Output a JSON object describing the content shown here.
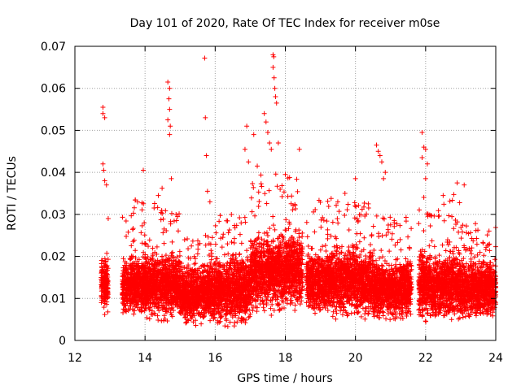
{
  "chart_data": {
    "type": "scatter",
    "title": "Day 101 of 2020, Rate Of TEC Index for receiver m0se",
    "xlabel": "GPS time / hours",
    "ylabel": "ROTI / TECUs",
    "xlim": [
      12,
      24
    ],
    "ylim": [
      0,
      0.07
    ],
    "grid": true,
    "marker": "+",
    "color": "#ff0000",
    "x_ticks": [
      12,
      14,
      16,
      18,
      20,
      22,
      24
    ],
    "x_tick_labels": [
      "12",
      "14",
      "16",
      "18",
      "20",
      "22",
      "24"
    ],
    "y_ticks": [
      0,
      0.01,
      0.02,
      0.03,
      0.04,
      0.05,
      0.06,
      0.07
    ],
    "y_tick_labels": [
      "0",
      "0.01",
      "0.02",
      "0.03",
      "0.04",
      "0.05",
      "0.06",
      "0.07"
    ],
    "data_gaps_hours": [
      [
        12.0,
        12.75
      ],
      [
        12.95,
        13.35
      ],
      [
        18.5,
        18.6
      ],
      [
        21.6,
        21.8
      ]
    ],
    "bands": [
      {
        "x": [
          12.75,
          12.95
        ],
        "base": 0.013,
        "spread": 0.006,
        "peak": 0.02
      },
      {
        "x": [
          13.35,
          14.0
        ],
        "base": 0.013,
        "spread": 0.006,
        "peak": 0.035
      },
      {
        "x": [
          14.0,
          15.0
        ],
        "base": 0.013,
        "spread": 0.007,
        "peak": 0.037
      },
      {
        "x": [
          15.0,
          16.0
        ],
        "base": 0.011,
        "spread": 0.006,
        "peak": 0.025
      },
      {
        "x": [
          16.0,
          17.0
        ],
        "base": 0.012,
        "spread": 0.007,
        "peak": 0.03
      },
      {
        "x": [
          17.0,
          18.0
        ],
        "base": 0.016,
        "spread": 0.008,
        "peak": 0.04
      },
      {
        "x": [
          18.0,
          18.5
        ],
        "base": 0.017,
        "spread": 0.008,
        "peak": 0.04
      },
      {
        "x": [
          18.6,
          19.5
        ],
        "base": 0.014,
        "spread": 0.007,
        "peak": 0.034
      },
      {
        "x": [
          19.5,
          20.5
        ],
        "base": 0.014,
        "spread": 0.007,
        "peak": 0.033
      },
      {
        "x": [
          20.5,
          21.6
        ],
        "base": 0.012,
        "spread": 0.006,
        "peak": 0.03
      },
      {
        "x": [
          21.8,
          23.0
        ],
        "base": 0.013,
        "spread": 0.007,
        "peak": 0.035
      },
      {
        "x": [
          23.0,
          24.0
        ],
        "base": 0.012,
        "spread": 0.006,
        "peak": 0.028
      }
    ],
    "outliers": [
      {
        "x": 12.8,
        "y": 0.0555
      },
      {
        "x": 12.8,
        "y": 0.054
      },
      {
        "x": 12.85,
        "y": 0.053
      },
      {
        "x": 12.8,
        "y": 0.042
      },
      {
        "x": 12.82,
        "y": 0.0405
      },
      {
        "x": 12.85,
        "y": 0.038
      },
      {
        "x": 12.9,
        "y": 0.037
      },
      {
        "x": 12.95,
        "y": 0.029
      },
      {
        "x": 14.65,
        "y": 0.0615
      },
      {
        "x": 14.7,
        "y": 0.06
      },
      {
        "x": 14.68,
        "y": 0.0575
      },
      {
        "x": 14.7,
        "y": 0.055
      },
      {
        "x": 14.65,
        "y": 0.0525
      },
      {
        "x": 14.72,
        "y": 0.051
      },
      {
        "x": 14.7,
        "y": 0.049
      },
      {
        "x": 14.75,
        "y": 0.0385
      },
      {
        "x": 13.95,
        "y": 0.0405
      },
      {
        "x": 15.7,
        "y": 0.0672
      },
      {
        "x": 15.72,
        "y": 0.053
      },
      {
        "x": 15.75,
        "y": 0.044
      },
      {
        "x": 15.78,
        "y": 0.0355
      },
      {
        "x": 15.85,
        "y": 0.033
      },
      {
        "x": 16.9,
        "y": 0.051
      },
      {
        "x": 16.85,
        "y": 0.0455
      },
      {
        "x": 16.95,
        "y": 0.0425
      },
      {
        "x": 17.1,
        "y": 0.049
      },
      {
        "x": 17.2,
        "y": 0.0415
      },
      {
        "x": 17.4,
        "y": 0.054
      },
      {
        "x": 17.45,
        "y": 0.052
      },
      {
        "x": 17.5,
        "y": 0.0495
      },
      {
        "x": 17.55,
        "y": 0.047
      },
      {
        "x": 17.6,
        "y": 0.0455
      },
      {
        "x": 17.65,
        "y": 0.068
      },
      {
        "x": 17.67,
        "y": 0.0675
      },
      {
        "x": 17.65,
        "y": 0.065
      },
      {
        "x": 17.68,
        "y": 0.0625
      },
      {
        "x": 17.7,
        "y": 0.06
      },
      {
        "x": 17.72,
        "y": 0.058
      },
      {
        "x": 17.75,
        "y": 0.0565
      },
      {
        "x": 17.8,
        "y": 0.047
      },
      {
        "x": 18.0,
        "y": 0.0395
      },
      {
        "x": 18.4,
        "y": 0.0455
      },
      {
        "x": 20.6,
        "y": 0.0465
      },
      {
        "x": 20.65,
        "y": 0.045
      },
      {
        "x": 20.7,
        "y": 0.044
      },
      {
        "x": 20.75,
        "y": 0.0425
      },
      {
        "x": 20.8,
        "y": 0.0385
      },
      {
        "x": 20.85,
        "y": 0.04
      },
      {
        "x": 21.9,
        "y": 0.0495
      },
      {
        "x": 21.95,
        "y": 0.046
      },
      {
        "x": 22.0,
        "y": 0.0455
      },
      {
        "x": 21.9,
        "y": 0.0435
      },
      {
        "x": 22.05,
        "y": 0.042
      },
      {
        "x": 22.0,
        "y": 0.0385
      },
      {
        "x": 20.0,
        "y": 0.0385
      },
      {
        "x": 19.7,
        "y": 0.035
      },
      {
        "x": 23.1,
        "y": 0.037
      },
      {
        "x": 22.9,
        "y": 0.0375
      },
      {
        "x": 22.5,
        "y": 0.0345
      }
    ]
  }
}
